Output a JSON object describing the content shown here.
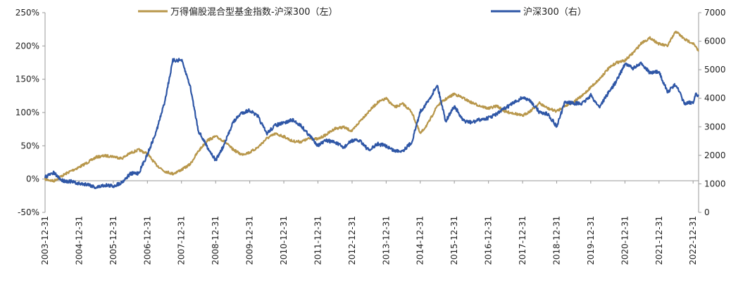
{
  "chart_data": {
    "type": "line",
    "legend": [
      {
        "name": "万得偏股混合型基金指数-沪深300（左）",
        "color": "#B8974B",
        "axis": "left"
      },
      {
        "name": "沪深300（右）",
        "color": "#2E56A6",
        "axis": "right"
      }
    ],
    "x_ticks": [
      "2003-12-31",
      "2004-12-31",
      "2005-12-31",
      "2006-12-31",
      "2007-12-31",
      "2008-12-31",
      "2009-12-31",
      "2010-12-31",
      "2011-12-31",
      "2012-12-31",
      "2013-12-31",
      "2014-12-31",
      "2015-12-31",
      "2016-12-31",
      "2017-12-31",
      "2018-12-31",
      "2019-12-31",
      "2020-12-31",
      "2021-12-31",
      "2022-12-31"
    ],
    "y_left": {
      "ticks": [
        "-50%",
        "0%",
        "50%",
        "100%",
        "150%",
        "200%",
        "250%"
      ],
      "range": [
        -50,
        250
      ],
      "unit": "%"
    },
    "y_right": {
      "ticks": [
        "0",
        "1000",
        "2000",
        "3000",
        "4000",
        "5000",
        "6000",
        "7000"
      ],
      "range": [
        0,
        7000
      ]
    },
    "grid": false,
    "series": [
      {
        "name": "万得偏股混合型基金指数-沪深300（左）",
        "axis": "left",
        "points": [
          [
            "2003-12-31",
            0
          ],
          [
            "2004-03-31",
            -3
          ],
          [
            "2004-06-30",
            5
          ],
          [
            "2004-09-30",
            12
          ],
          [
            "2004-12-31",
            18
          ],
          [
            "2005-03-31",
            25
          ],
          [
            "2005-06-30",
            33
          ],
          [
            "2005-09-30",
            35
          ],
          [
            "2005-12-31",
            34
          ],
          [
            "2006-03-31",
            31
          ],
          [
            "2006-06-30",
            39
          ],
          [
            "2006-09-30",
            44
          ],
          [
            "2006-12-31",
            38
          ],
          [
            "2007-03-31",
            22
          ],
          [
            "2007-06-30",
            12
          ],
          [
            "2007-09-30",
            8
          ],
          [
            "2007-12-31",
            14
          ],
          [
            "2008-03-31",
            22
          ],
          [
            "2008-06-30",
            42
          ],
          [
            "2008-09-30",
            58
          ],
          [
            "2008-12-31",
            64
          ],
          [
            "2009-03-31",
            57
          ],
          [
            "2009-06-30",
            45
          ],
          [
            "2009-09-30",
            37
          ],
          [
            "2009-12-31",
            40
          ],
          [
            "2010-03-31",
            48
          ],
          [
            "2010-06-30",
            61
          ],
          [
            "2010-09-30",
            68
          ],
          [
            "2010-12-31",
            64
          ],
          [
            "2011-03-31",
            57
          ],
          [
            "2011-06-30",
            56
          ],
          [
            "2011-09-30",
            61
          ],
          [
            "2011-12-31",
            60
          ],
          [
            "2012-03-31",
            67
          ],
          [
            "2012-06-30",
            76
          ],
          [
            "2012-09-30",
            78
          ],
          [
            "2012-12-31",
            72
          ],
          [
            "2013-03-31",
            88
          ],
          [
            "2013-06-30",
            102
          ],
          [
            "2013-09-30",
            115
          ],
          [
            "2013-12-31",
            121
          ],
          [
            "2014-03-31",
            108
          ],
          [
            "2014-06-30",
            113
          ],
          [
            "2014-09-30",
            101
          ],
          [
            "2014-12-31",
            68
          ],
          [
            "2015-03-31",
            85
          ],
          [
            "2015-06-30",
            110
          ],
          [
            "2015-09-30",
            120
          ],
          [
            "2015-12-31",
            128
          ],
          [
            "2016-03-31",
            122
          ],
          [
            "2016-06-30",
            115
          ],
          [
            "2016-09-30",
            110
          ],
          [
            "2016-12-31",
            106
          ],
          [
            "2017-03-31",
            110
          ],
          [
            "2017-06-30",
            101
          ],
          [
            "2017-09-30",
            99
          ],
          [
            "2017-12-31",
            95
          ],
          [
            "2018-03-31",
            103
          ],
          [
            "2018-06-30",
            114
          ],
          [
            "2018-09-30",
            106
          ],
          [
            "2018-12-31",
            102
          ],
          [
            "2019-03-31",
            110
          ],
          [
            "2019-06-30",
            116
          ],
          [
            "2019-09-30",
            125
          ],
          [
            "2019-12-31",
            138
          ],
          [
            "2020-03-31",
            150
          ],
          [
            "2020-06-30",
            165
          ],
          [
            "2020-09-30",
            175
          ],
          [
            "2020-12-31",
            178
          ],
          [
            "2021-03-31",
            190
          ],
          [
            "2021-06-30",
            205
          ],
          [
            "2021-09-30",
            212
          ],
          [
            "2021-12-31",
            203
          ],
          [
            "2022-03-31",
            200
          ],
          [
            "2022-06-30",
            222
          ],
          [
            "2022-09-30",
            210
          ],
          [
            "2022-12-31",
            204
          ],
          [
            "2023-02-28",
            192
          ]
        ]
      },
      {
        "name": "沪深300（右）",
        "axis": "right",
        "points": [
          [
            "2003-12-31",
            1250
          ],
          [
            "2004-03-31",
            1380
          ],
          [
            "2004-06-30",
            1120
          ],
          [
            "2004-09-30",
            1080
          ],
          [
            "2004-12-31",
            1000
          ],
          [
            "2005-03-31",
            990
          ],
          [
            "2005-06-30",
            870
          ],
          [
            "2005-09-30",
            960
          ],
          [
            "2005-12-31",
            920
          ],
          [
            "2006-03-31",
            1050
          ],
          [
            "2006-06-30",
            1350
          ],
          [
            "2006-09-30",
            1380
          ],
          [
            "2006-12-31",
            2040
          ],
          [
            "2007-03-31",
            2780
          ],
          [
            "2007-06-30",
            3820
          ],
          [
            "2007-09-30",
            5320
          ],
          [
            "2007-12-31",
            5340
          ],
          [
            "2008-03-31",
            4450
          ],
          [
            "2008-06-30",
            2850
          ],
          [
            "2008-09-30",
            2310
          ],
          [
            "2008-12-31",
            1820
          ],
          [
            "2009-03-31",
            2350
          ],
          [
            "2009-06-30",
            3130
          ],
          [
            "2009-09-30",
            3480
          ],
          [
            "2009-12-31",
            3580
          ],
          [
            "2010-03-31",
            3350
          ],
          [
            "2010-06-30",
            2760
          ],
          [
            "2010-09-30",
            3050
          ],
          [
            "2010-12-31",
            3130
          ],
          [
            "2011-03-31",
            3240
          ],
          [
            "2011-06-30",
            3050
          ],
          [
            "2011-09-30",
            2700
          ],
          [
            "2011-12-31",
            2350
          ],
          [
            "2012-03-31",
            2520
          ],
          [
            "2012-06-30",
            2460
          ],
          [
            "2012-09-30",
            2270
          ],
          [
            "2012-12-31",
            2520
          ],
          [
            "2013-03-31",
            2510
          ],
          [
            "2013-06-30",
            2160
          ],
          [
            "2013-09-30",
            2400
          ],
          [
            "2013-12-31",
            2330
          ],
          [
            "2014-03-31",
            2150
          ],
          [
            "2014-06-30",
            2170
          ],
          [
            "2014-09-30",
            2450
          ],
          [
            "2014-12-31",
            3530
          ],
          [
            "2015-03-31",
            3920
          ],
          [
            "2015-06-30",
            4470
          ],
          [
            "2015-09-30",
            3200
          ],
          [
            "2015-12-31",
            3730
          ],
          [
            "2016-03-31",
            3220
          ],
          [
            "2016-06-30",
            3150
          ],
          [
            "2016-09-30",
            3250
          ],
          [
            "2016-12-31",
            3310
          ],
          [
            "2017-03-31",
            3450
          ],
          [
            "2017-06-30",
            3660
          ],
          [
            "2017-09-30",
            3840
          ],
          [
            "2017-12-31",
            4030
          ],
          [
            "2018-03-31",
            3890
          ],
          [
            "2018-06-30",
            3510
          ],
          [
            "2018-09-30",
            3440
          ],
          [
            "2018-12-31",
            3010
          ],
          [
            "2019-03-31",
            3870
          ],
          [
            "2019-06-30",
            3830
          ],
          [
            "2019-09-30",
            3810
          ],
          [
            "2019-12-31",
            4100
          ],
          [
            "2020-03-31",
            3690
          ],
          [
            "2020-06-30",
            4160
          ],
          [
            "2020-09-30",
            4590
          ],
          [
            "2020-12-31",
            5210
          ],
          [
            "2021-03-31",
            5050
          ],
          [
            "2021-06-30",
            5220
          ],
          [
            "2021-09-30",
            4870
          ],
          [
            "2021-12-31",
            4940
          ],
          [
            "2022-03-31",
            4220
          ],
          [
            "2022-06-30",
            4490
          ],
          [
            "2022-09-30",
            3800
          ],
          [
            "2022-12-31",
            3870
          ],
          [
            "2023-01-31",
            4160
          ],
          [
            "2023-02-28",
            4080
          ]
        ]
      }
    ]
  }
}
